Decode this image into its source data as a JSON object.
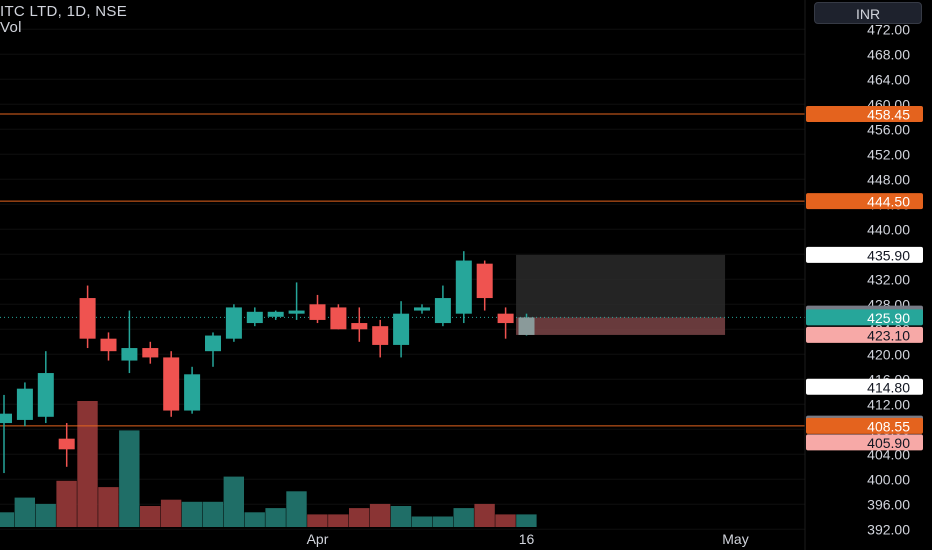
{
  "header": {
    "title": "ITC LTD, 1D, NSE",
    "volume_label": "Vol"
  },
  "currency_button": "INR",
  "colors": {
    "up": "#26a69a",
    "down": "#ef5350",
    "vol_up": "#1f6e67",
    "vol_down": "#8a3434",
    "hline": "#e4631e",
    "grid": "#0f0f0f"
  },
  "chart_data": {
    "type": "candlestick",
    "ylim": [
      391,
      473
    ],
    "y_ticks": [
      "472.00",
      "468.00",
      "464.00",
      "460.00",
      "456.00",
      "452.00",
      "448.00",
      "444.00",
      "440.00",
      "436.00",
      "432.00",
      "428.00",
      "424.00",
      "420.00",
      "416.00",
      "412.00",
      "408.00",
      "404.00",
      "400.00",
      "396.00",
      "392.00"
    ],
    "x_ticks": [
      {
        "label": "Apr",
        "i": 15
      },
      {
        "label": "16",
        "i": 25
      },
      {
        "label": "May",
        "i": 35
      }
    ],
    "candles": [
      {
        "o": 409.0,
        "h": 413.5,
        "l": 401.0,
        "c": 410.5
      },
      {
        "o": 409.5,
        "h": 415.5,
        "l": 408.5,
        "c": 414.5
      },
      {
        "o": 410.0,
        "h": 420.5,
        "l": 409.0,
        "c": 417.0
      },
      {
        "o": 406.5,
        "h": 409.0,
        "l": 402.0,
        "c": 404.8
      },
      {
        "o": 429.0,
        "h": 431.0,
        "l": 421.0,
        "c": 422.5
      },
      {
        "o": 422.5,
        "h": 423.5,
        "l": 419.0,
        "c": 420.5
      },
      {
        "o": 419.0,
        "h": 427.0,
        "l": 417.0,
        "c": 421.0
      },
      {
        "o": 421.0,
        "h": 422.0,
        "l": 418.5,
        "c": 419.5
      },
      {
        "o": 419.5,
        "h": 420.5,
        "l": 410.0,
        "c": 411.0
      },
      {
        "o": 411.0,
        "h": 418.0,
        "l": 410.5,
        "c": 416.8
      },
      {
        "o": 420.5,
        "h": 423.5,
        "l": 418.0,
        "c": 423.0
      },
      {
        "o": 422.5,
        "h": 428.0,
        "l": 422.0,
        "c": 427.5
      },
      {
        "o": 425.0,
        "h": 427.5,
        "l": 424.5,
        "c": 426.8
      },
      {
        "o": 426.0,
        "h": 427.0,
        "l": 425.5,
        "c": 426.8
      },
      {
        "o": 426.5,
        "h": 431.5,
        "l": 425.5,
        "c": 427.0
      },
      {
        "o": 428.0,
        "h": 429.5,
        "l": 425.0,
        "c": 425.5
      },
      {
        "o": 427.5,
        "h": 428.0,
        "l": 424.0,
        "c": 424.0
      },
      {
        "o": 425.0,
        "h": 427.5,
        "l": 422.0,
        "c": 424.0
      },
      {
        "o": 424.5,
        "h": 425.5,
        "l": 419.5,
        "c": 421.5
      },
      {
        "o": 421.5,
        "h": 428.5,
        "l": 419.5,
        "c": 426.5
      },
      {
        "o": 427.0,
        "h": 428.0,
        "l": 426.5,
        "c": 427.5
      },
      {
        "o": 425.0,
        "h": 431.0,
        "l": 424.5,
        "c": 429.0
      },
      {
        "o": 426.5,
        "h": 436.5,
        "l": 425.0,
        "c": 435.0
      },
      {
        "o": 434.5,
        "h": 435.0,
        "l": 427.0,
        "c": 429.0
      },
      {
        "o": 426.5,
        "h": 427.5,
        "l": 422.5,
        "c": 425.0
      },
      {
        "o": 423.1,
        "h": 426.5,
        "l": 423.0,
        "c": 425.9
      }
    ],
    "volume": [
      7,
      14,
      11,
      22,
      60,
      19,
      46,
      10,
      13,
      12,
      12,
      24,
      7,
      9,
      17,
      6,
      6,
      9,
      11,
      10,
      5,
      5,
      9,
      11,
      6,
      6
    ],
    "horizontal_lines": [
      458.45,
      444.5,
      408.55
    ],
    "price_labels": [
      {
        "text": "458.45",
        "bg": "#e4631e",
        "fg": "#ffffff",
        "v": 458.45
      },
      {
        "text": "444.50",
        "bg": "#e4631e",
        "fg": "#ffffff",
        "v": 444.5
      },
      {
        "text": "435.90",
        "bg": "#ffffff",
        "fg": "#131722",
        "v": 435.9
      },
      {
        "text": "426.50",
        "bg": "#787b86",
        "fg": "#ffffff",
        "v": 426.5
      },
      {
        "text": "425.90",
        "bg": "#26a69a",
        "fg": "#ffffff",
        "v": 425.9
      },
      {
        "text": "423.10",
        "bg": "#f7a9a7",
        "fg": "#131722",
        "v": 423.1
      },
      {
        "text": "414.80",
        "bg": "#ffffff",
        "fg": "#131722",
        "v": 414.8
      },
      {
        "text": "408.90",
        "bg": "#787b86",
        "fg": "#ffffff",
        "v": 408.9
      },
      {
        "text": "408.55",
        "bg": "#e4631e",
        "fg": "#ffffff",
        "v": 408.55
      },
      {
        "text": "405.90",
        "bg": "#f7a9a7",
        "fg": "#131722",
        "v": 405.9
      }
    ],
    "position_tool": {
      "entry": 425.9,
      "target": 435.9,
      "stop": 423.1,
      "from_i": 24.5,
      "to_i": 34.5
    }
  }
}
